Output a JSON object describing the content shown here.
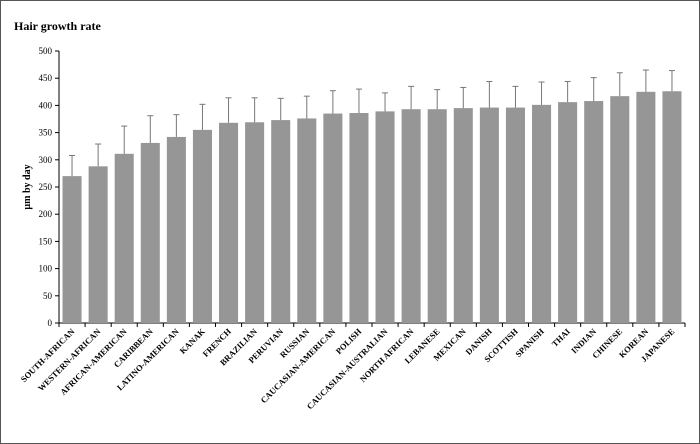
{
  "chart_data": {
    "type": "bar",
    "title": "Hair growth rate",
    "xlabel": "",
    "ylabel": "µm by day",
    "ylim": [
      0,
      500
    ],
    "yticks": [
      0,
      50,
      100,
      150,
      200,
      250,
      300,
      350,
      400,
      450,
      500
    ],
    "grid": false,
    "bar_color": "#969696",
    "categories": [
      "SOUTH-AFRICAN",
      "WESTERN-AFRICAN",
      "AFRICAN-AMERICAN",
      "CARIBBEAN",
      "LATINO-AMERICAN",
      "KANAK",
      "FRENCH",
      "BRAZILIAN",
      "PERUVIAN",
      "RUSSIAN",
      "CAUCASIAN-AMERICAN",
      "POLISH",
      "CAUCASIAN-AUSTRALIAN",
      "NORTH AFRICAN",
      "LEBANESE",
      "MEXICAN",
      "DANISH",
      "SCOTTISH",
      "SPANISH",
      "THAI",
      "INDIAN",
      "CHINESE",
      "KOREAN",
      "JAPANESE"
    ],
    "values": [
      270,
      288,
      311,
      331,
      342,
      355,
      368,
      369,
      373,
      376,
      385,
      386,
      389,
      393,
      393,
      395,
      396,
      396,
      401,
      406,
      408,
      417,
      425,
      426
    ],
    "error_upper": [
      308,
      329,
      362,
      381,
      383,
      402,
      414,
      414,
      413,
      417,
      427,
      430,
      423,
      435,
      429,
      433,
      444,
      435,
      443,
      444,
      451,
      460,
      465,
      464
    ]
  }
}
